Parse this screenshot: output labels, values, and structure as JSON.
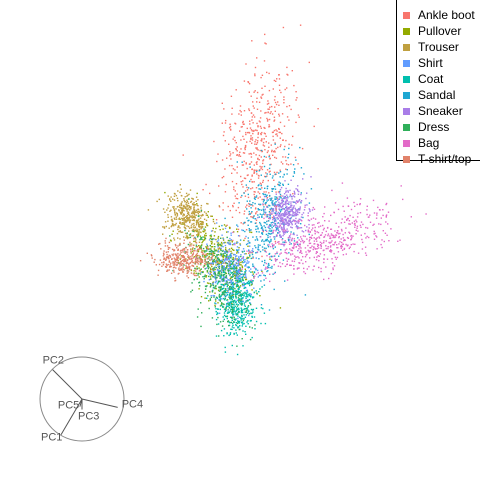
{
  "chart_data": {
    "type": "scatter",
    "title": "",
    "xlabel": "",
    "ylabel": "",
    "grid": false,
    "legend_position": "top-right",
    "series": [
      {
        "name": "Ankle boot",
        "color": "#F8766D",
        "center": [
          258,
          148
        ]
      },
      {
        "name": "Pullover",
        "color": "#D39200",
        "center": [
          218,
          258
        ]
      },
      {
        "name": "Trouser",
        "color": "#93AA00",
        "center": [
          188,
          216
        ]
      },
      {
        "name": "Shirt",
        "color": "#00BA38",
        "center": [
          230,
          270
        ]
      },
      {
        "name": "Coat",
        "color": "#00C19F",
        "center": [
          236,
          302
        ]
      },
      {
        "name": "Sandal",
        "color": "#00B9E3",
        "center": [
          268,
          220
        ]
      },
      {
        "name": "Sneaker",
        "color": "#619CFF",
        "center": [
          286,
          213
        ]
      },
      {
        "name": "Dress",
        "color": "#DB72FB",
        "center": [
          218,
          275
        ]
      },
      {
        "name": "Bag",
        "color": "#FF61C3",
        "center": [
          322,
          240
        ]
      },
      {
        "name": "T-shirt/top",
        "color": "#F8766D",
        "center": [
          183,
          258
        ]
      }
    ],
    "biplot": {
      "axes": [
        {
          "label": "PC2",
          "end": [
            -0.7,
            -0.7
          ]
        },
        {
          "label": "PC4",
          "end": [
            0.85,
            0.2
          ]
        },
        {
          "label": "PC5",
          "end": [
            -0.05,
            0.18
          ]
        },
        {
          "label": "PC3",
          "end": [
            0.0,
            0.25
          ]
        },
        {
          "label": "PC1",
          "end": [
            -0.5,
            0.85
          ]
        }
      ]
    }
  }
}
